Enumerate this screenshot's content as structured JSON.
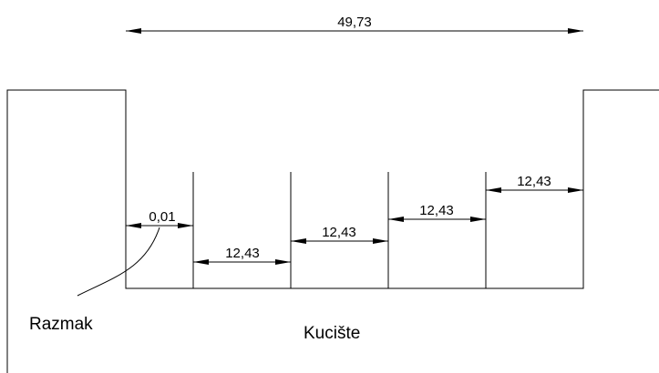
{
  "dimensions": {
    "overall_width": "49,73",
    "gap": "0,01",
    "segment_1": "12,43",
    "segment_2": "12,43",
    "segment_3": "12,43",
    "segment_4": "12,43"
  },
  "labels": {
    "gap_callout": "Razmak",
    "housing": "Kucište"
  }
}
